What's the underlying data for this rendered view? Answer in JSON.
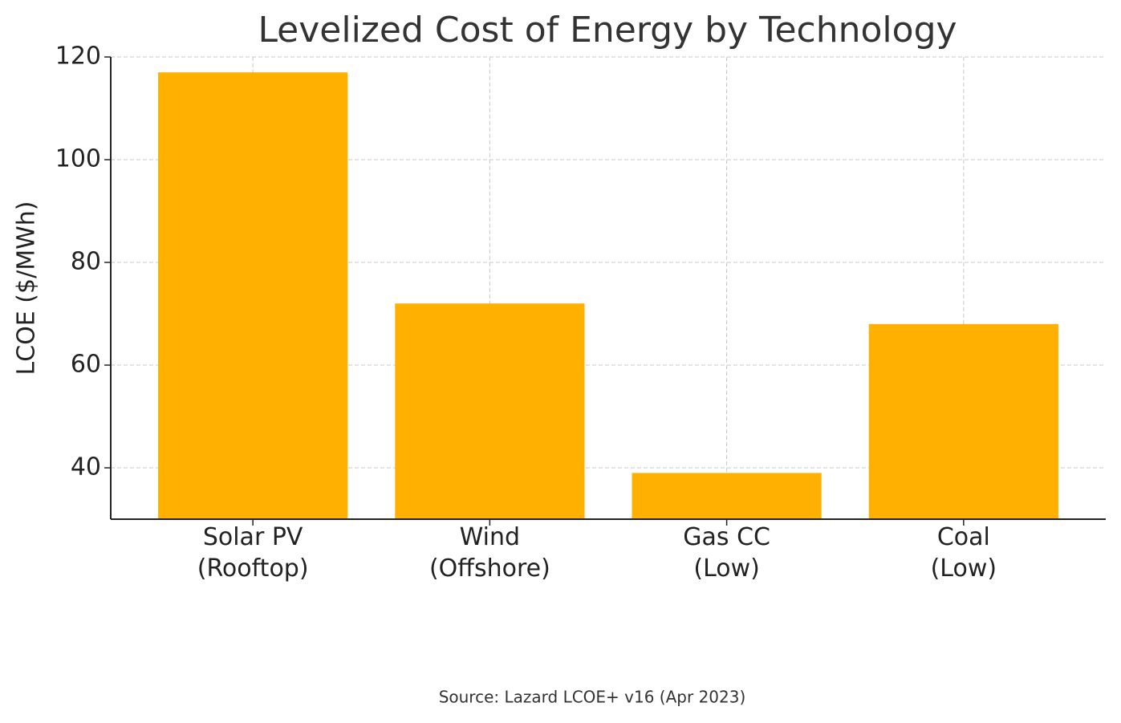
{
  "chart_data": {
    "type": "bar",
    "title": "Levelized Cost of Energy by Technology",
    "y_label": "LCOE ($/MWh)",
    "source": "Source: Lazard LCOE+ v16 (Apr 2023)",
    "categories": [
      "Solar PV\n(Rooftop)",
      "Wind\n(Offshore)",
      "Gas CC\n(Low)",
      "Coal\n(Low)"
    ],
    "values": [
      117,
      72,
      39,
      68
    ],
    "color": "#ffb000",
    "ylim": [
      30,
      120
    ],
    "yticks": [
      40,
      60,
      80,
      100,
      120
    ],
    "grid": true
  }
}
